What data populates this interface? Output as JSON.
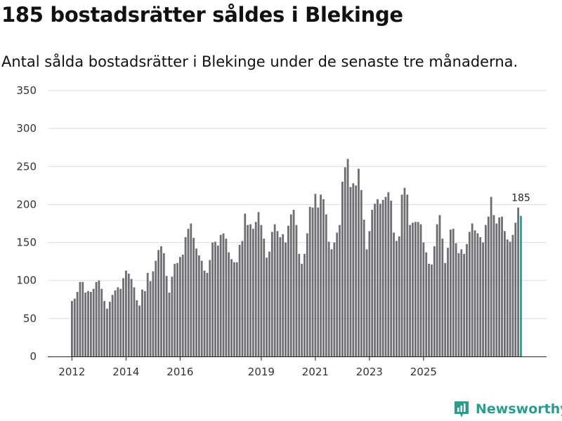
{
  "chart_data": {
    "type": "bar",
    "title": "185 bostadsrätter såldes i Blekinge",
    "subtitle": "Antal sålda bostadsrätter i Blekinge under de senaste tre månaderna.",
    "xlabel": "",
    "ylabel": "",
    "ylim": [
      0,
      350
    ],
    "yticks": [
      0,
      50,
      100,
      150,
      200,
      250,
      300,
      350
    ],
    "xticks": [
      {
        "label": "2012",
        "index": 0
      },
      {
        "label": "2014",
        "index": 20
      },
      {
        "label": "2016",
        "index": 40
      },
      {
        "label": "2019",
        "index": 70
      },
      {
        "label": "2021",
        "index": 90
      },
      {
        "label": "2023",
        "index": 110
      },
      {
        "label": "2025",
        "index": 130
      }
    ],
    "grid": true,
    "series": [
      {
        "name": "Sålda bostadsrätter",
        "values": [
          73,
          76,
          85,
          98,
          98,
          84,
          86,
          85,
          89,
          98,
          100,
          89,
          73,
          63,
          72,
          81,
          87,
          91,
          89,
          103,
          113,
          109,
          102,
          91,
          74,
          67,
          88,
          86,
          110,
          99,
          112,
          126,
          140,
          145,
          136,
          106,
          84,
          105,
          122,
          123,
          131,
          134,
          157,
          168,
          175,
          156,
          142,
          133,
          126,
          113,
          110,
          127,
          150,
          151,
          146,
          160,
          162,
          155,
          137,
          128,
          124,
          124,
          147,
          152,
          188,
          173,
          174,
          168,
          177,
          190,
          173,
          155,
          130,
          138,
          164,
          174,
          165,
          157,
          161,
          150,
          172,
          187,
          193,
          173,
          135,
          122,
          135,
          162,
          197,
          196,
          214,
          196,
          213,
          207,
          187,
          151,
          141,
          150,
          163,
          173,
          230,
          249,
          260,
          223,
          228,
          225,
          247,
          219,
          180,
          141,
          165,
          193,
          201,
          207,
          201,
          206,
          210,
          216,
          205,
          163,
          152,
          158,
          213,
          222,
          213,
          173,
          176,
          177,
          177,
          174,
          150,
          137,
          122,
          121,
          145,
          174,
          186,
          155,
          123,
          143,
          167,
          168,
          149,
          136,
          141,
          135,
          148,
          164,
          175,
          166,
          162,
          157,
          150,
          173,
          184,
          210,
          186,
          175,
          183,
          184,
          165,
          154,
          151,
          160,
          176,
          196,
          185
        ]
      }
    ],
    "highlight": {
      "index": 166,
      "value": 185,
      "label": "185"
    },
    "colors": {
      "bar": "#6e6d72",
      "highlight": "#2a9d8f",
      "grid": "#dddddd",
      "axis": "#222222"
    }
  },
  "branding": {
    "name": "Newsworthy",
    "icon": "newsworthy-logo-icon",
    "color": "#2a9d8f"
  }
}
